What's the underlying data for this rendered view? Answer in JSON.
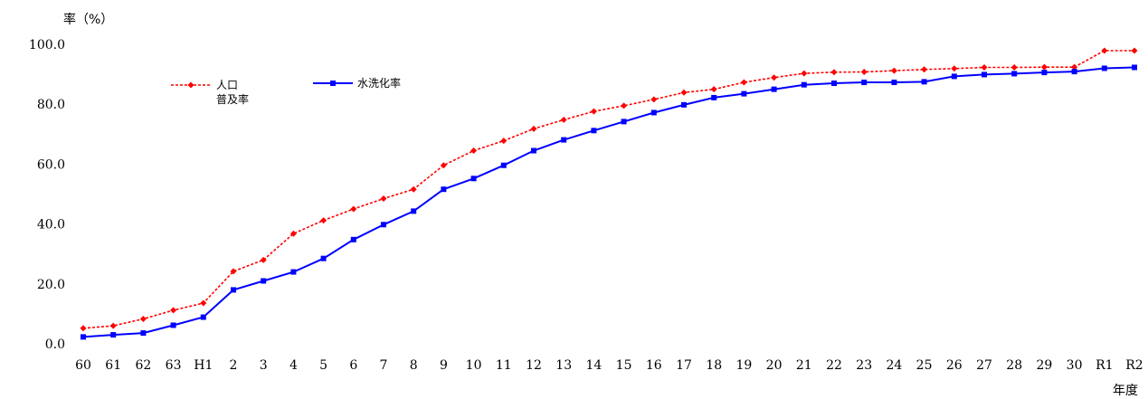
{
  "chart_data": {
    "type": "line",
    "ylabel": "率（%）",
    "xlabel": "年度",
    "ylim": [
      0,
      100
    ],
    "yticks": [
      "0.0",
      "20.0",
      "40.0",
      "60.0",
      "80.0",
      "100.0"
    ],
    "grid": false,
    "legend_position": "top-left",
    "categories": [
      "60",
      "61",
      "62",
      "63",
      "H1",
      "2",
      "3",
      "4",
      "5",
      "6",
      "7",
      "8",
      "9",
      "10",
      "11",
      "12",
      "13",
      "14",
      "15",
      "16",
      "17",
      "18",
      "19",
      "20",
      "21",
      "22",
      "23",
      "24",
      "25",
      "26",
      "27",
      "28",
      "29",
      "30",
      "R1",
      "R2"
    ],
    "series": [
      {
        "name": "人口普及率",
        "name_lines": [
          "人口",
          "普及率"
        ],
        "color": "#ff0000",
        "line_style": "dashed",
        "marker": "diamond",
        "values": [
          5.2,
          6.0,
          8.3,
          11.2,
          13.6,
          24.2,
          28.0,
          36.8,
          41.2,
          45.0,
          48.5,
          51.6,
          59.6,
          64.5,
          67.8,
          71.8,
          74.8,
          77.6,
          79.5,
          81.6,
          83.9,
          85.0,
          87.3,
          88.9,
          90.3,
          90.7,
          90.8,
          91.2,
          91.6,
          91.9,
          92.3,
          92.3,
          92.4,
          92.4,
          97.9,
          97.9
        ]
      },
      {
        "name": "水洗化率",
        "color": "#0000ff",
        "line_style": "solid",
        "marker": "square",
        "values": [
          2.3,
          3.0,
          3.6,
          6.2,
          8.9,
          18.0,
          21.0,
          24.0,
          28.5,
          34.8,
          39.8,
          44.3,
          51.6,
          55.2,
          59.6,
          64.5,
          68.1,
          71.2,
          74.2,
          77.2,
          79.8,
          82.2,
          83.5,
          85.0,
          86.5,
          87.0,
          87.3,
          87.3,
          87.5,
          89.3,
          89.9,
          90.2,
          90.6,
          90.9,
          92.0,
          92.3
        ]
      }
    ]
  }
}
